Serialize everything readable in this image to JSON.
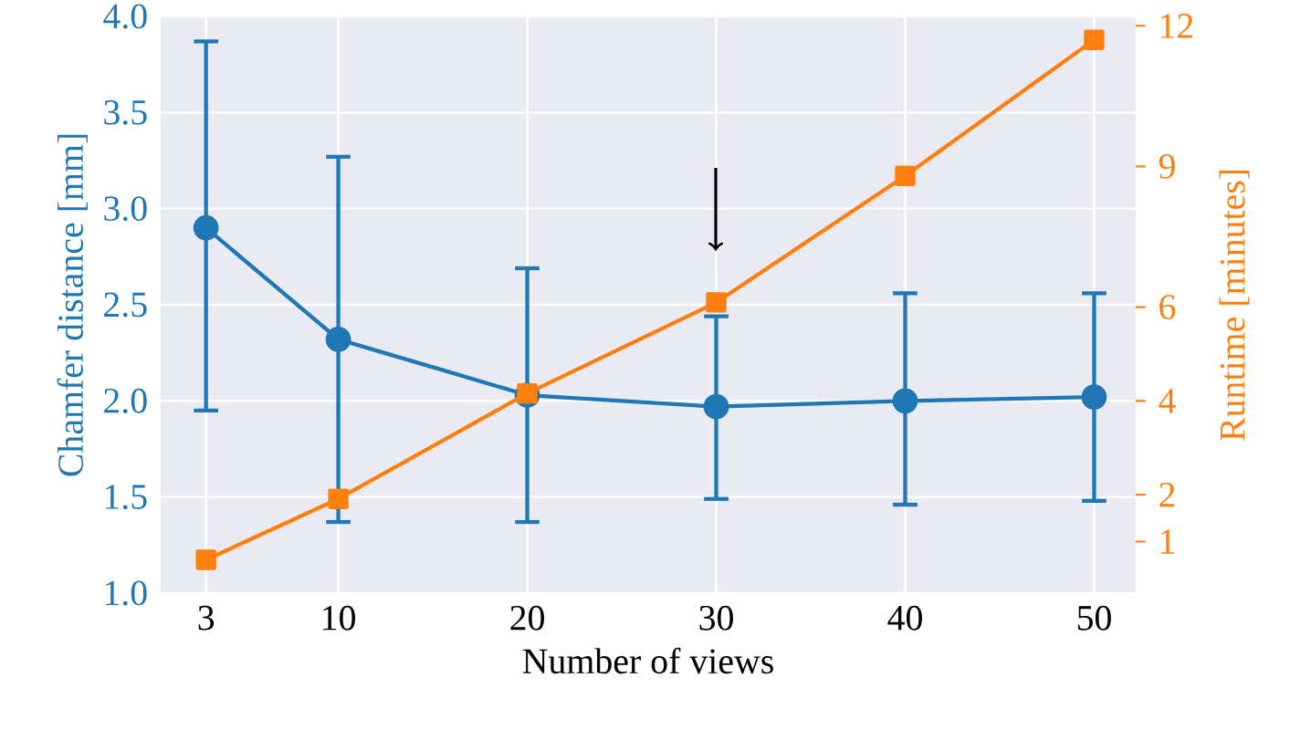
{
  "chart_data": {
    "type": "line",
    "xlabel": "Number of views",
    "ylabel": "Chamfer distance [mm]",
    "y2label": "Runtime [minutes]",
    "x": [
      3,
      10,
      20,
      30,
      40,
      50
    ],
    "xlim": [
      0.6,
      52.2
    ],
    "xticks": [
      3,
      10,
      20,
      30,
      40,
      50
    ],
    "ylim": [
      1,
      4
    ],
    "yticks": [
      {
        "value": 1,
        "label": "1.0"
      },
      {
        "value": 1.5,
        "label": "1.5"
      },
      {
        "value": 2,
        "label": "2.0"
      },
      {
        "value": 2.5,
        "label": "2.5"
      },
      {
        "value": 3,
        "label": "3.0"
      },
      {
        "value": 3.5,
        "label": "3.5"
      },
      {
        "value": 4,
        "label": "4.0"
      }
    ],
    "y2lim": [
      -0.1,
      12.2
    ],
    "y2ticks": [
      1,
      2,
      4,
      6,
      9,
      12
    ],
    "grid": true,
    "line_style": "solid",
    "series": [
      {
        "color": "#1f77b4",
        "marker": "circle",
        "values": [
          2.9,
          2.32,
          2.03,
          1.97,
          2.0,
          2.02
        ],
        "errors": [
          [
            1.95,
            3.87
          ],
          [
            1.37,
            3.27
          ],
          [
            1.37,
            2.69
          ],
          [
            1.49,
            2.44
          ],
          [
            1.46,
            2.56
          ],
          [
            1.48,
            2.56
          ]
        ]
      },
      {
        "color": "#ff7f0e",
        "marker": "square",
        "axis": "y2",
        "values": [
          0.61,
          1.91,
          4.16,
          6.1,
          8.8,
          11.7
        ]
      }
    ]
  }
}
